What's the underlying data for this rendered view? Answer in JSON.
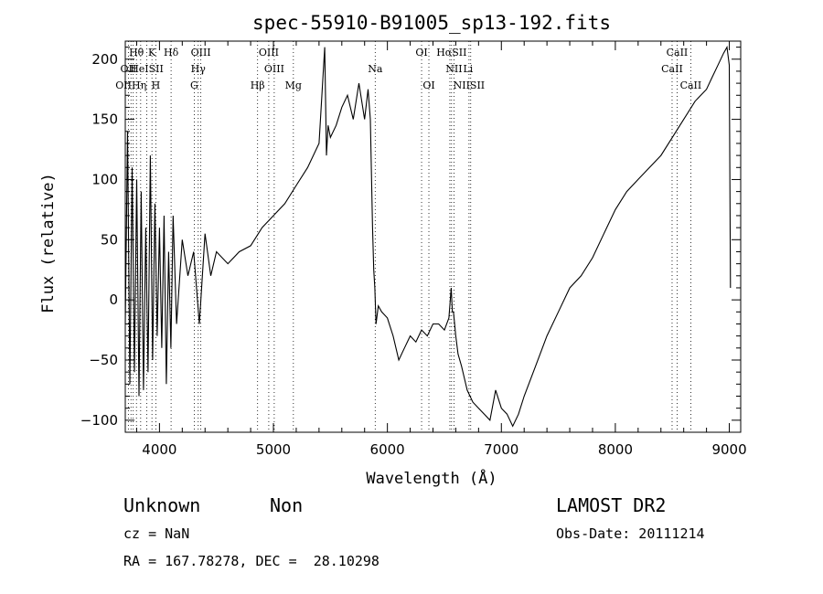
{
  "chart_data": {
    "type": "line",
    "title": "spec-55910-B91005_sp13-192.fits",
    "xlabel": "Wavelength (Å)",
    "ylabel": "Flux (relative)",
    "xlim": [
      3700,
      9100
    ],
    "ylim": [
      -110,
      215
    ],
    "x_ticks": [
      4000,
      5000,
      6000,
      7000,
      8000,
      9000
    ],
    "y_ticks": [
      -100,
      -50,
      0,
      50,
      100,
      150,
      200
    ],
    "grid": false,
    "series": [
      {
        "x": [
          3700,
          3720,
          3740,
          3760,
          3780,
          3800,
          3820,
          3840,
          3860,
          3880,
          3900,
          3920,
          3940,
          3960,
          3980,
          4000,
          4020,
          4040,
          4060,
          4080,
          4100,
          4120,
          4150,
          4200,
          4250,
          4300,
          4350,
          4400,
          4450,
          4500,
          4600,
          4700,
          4800,
          4900,
          5000,
          5100,
          5200,
          5300,
          5400,
          5450,
          5465,
          5480,
          5500,
          5550,
          5600,
          5650,
          5700,
          5750,
          5800,
          5830,
          5850,
          5870,
          5880,
          5890,
          5900,
          5920,
          5950,
          6000,
          6050,
          6100,
          6150,
          6200,
          6250,
          6300,
          6350,
          6400,
          6450,
          6500,
          6540,
          6560,
          6570,
          6580,
          6600,
          6620,
          6650,
          6700,
          6750,
          6800,
          6850,
          6900,
          6950,
          7000,
          7050,
          7100,
          7150,
          7200,
          7300,
          7400,
          7500,
          7600,
          7700,
          7800,
          7900,
          8000,
          8100,
          8200,
          8300,
          8400,
          8500,
          8600,
          8700,
          8800,
          8850,
          8900,
          8950,
          8980,
          9000,
          9010
        ],
        "y": [
          -20,
          140,
          -70,
          110,
          -60,
          100,
          -80,
          90,
          -75,
          60,
          -60,
          120,
          -50,
          80,
          -30,
          60,
          -40,
          70,
          -70,
          40,
          -40,
          70,
          -20,
          50,
          20,
          40,
          -20,
          55,
          20,
          40,
          30,
          40,
          45,
          60,
          70,
          80,
          95,
          110,
          130,
          210,
          120,
          145,
          135,
          145,
          160,
          170,
          150,
          180,
          150,
          175,
          150,
          60,
          25,
          10,
          -20,
          -5,
          -10,
          -15,
          -30,
          -50,
          -40,
          -30,
          -35,
          -25,
          -30,
          -20,
          -20,
          -25,
          -15,
          10,
          -10,
          -10,
          -30,
          -45,
          -55,
          -75,
          -85,
          -90,
          -95,
          -100,
          -75,
          -90,
          -95,
          -105,
          -95,
          -80,
          -55,
          -30,
          -10,
          10,
          20,
          35,
          55,
          75,
          90,
          100,
          110,
          120,
          135,
          150,
          165,
          175,
          185,
          195,
          205,
          210,
          195,
          10
        ]
      }
    ],
    "lines": [
      {
        "label": "Hθ",
        "x": 3798,
        "row": 0,
        "style": "italic-second"
      },
      {
        "label": "K",
        "x": 3934,
        "row": 0
      },
      {
        "label": "Hδ",
        "x": 4102,
        "row": 0,
        "style": "italic-second"
      },
      {
        "label": "OIII",
        "x": 4363,
        "row": 0
      },
      {
        "label": "OIII",
        "x": 4959,
        "row": 0
      },
      {
        "label": "OI",
        "x": 6300,
        "row": 0
      },
      {
        "label": "HαSII",
        "x": 6563,
        "row": 0,
        "style": "italic-second"
      },
      {
        "label": "CaII",
        "x": 8542,
        "row": 0
      },
      {
        "label": "OII",
        "x": 3727,
        "row": 1
      },
      {
        "label": "HeISII",
        "x": 3889,
        "row": 1
      },
      {
        "label": "Hγ",
        "x": 4340,
        "row": 1,
        "style": "italic-second"
      },
      {
        "label": "OIII",
        "x": 5007,
        "row": 1
      },
      {
        "label": "Na",
        "x": 5893,
        "row": 1
      },
      {
        "label": "NII",
        "x": 6584,
        "row": 1
      },
      {
        "label": "Li",
        "x": 6708,
        "row": 1
      },
      {
        "label": "CaII",
        "x": 8498,
        "row": 1
      },
      {
        "label": "OIIHη",
        "x": 3750,
        "row": 2,
        "style": "italic-last"
      },
      {
        "label": "H",
        "x": 3968,
        "row": 2
      },
      {
        "label": "G",
        "x": 4305,
        "row": 2
      },
      {
        "label": "Hβ",
        "x": 4861,
        "row": 2,
        "style": "italic-second"
      },
      {
        "label": "Mg",
        "x": 5175,
        "row": 2
      },
      {
        "label": "OI",
        "x": 6364,
        "row": 2
      },
      {
        "label": "NIISII",
        "x": 6716,
        "row": 2
      },
      {
        "label": "CaII",
        "x": 8662,
        "row": 2
      }
    ],
    "line_markers_x": [
      3727,
      3750,
      3770,
      3798,
      3835,
      3889,
      3934,
      3968,
      4102,
      4305,
      4340,
      4363,
      4861,
      4959,
      5007,
      5175,
      5893,
      6300,
      6364,
      6548,
      6563,
      6584,
      6716,
      6731,
      8498,
      8542,
      8662
    ]
  },
  "info": {
    "class": "Unknown",
    "subclass": "Non",
    "survey": "LAMOST DR2",
    "cz": "cz = NaN",
    "obs_date": "Obs-Date: 20111214",
    "coords": "RA = 167.78278, DEC =  28.10298"
  }
}
